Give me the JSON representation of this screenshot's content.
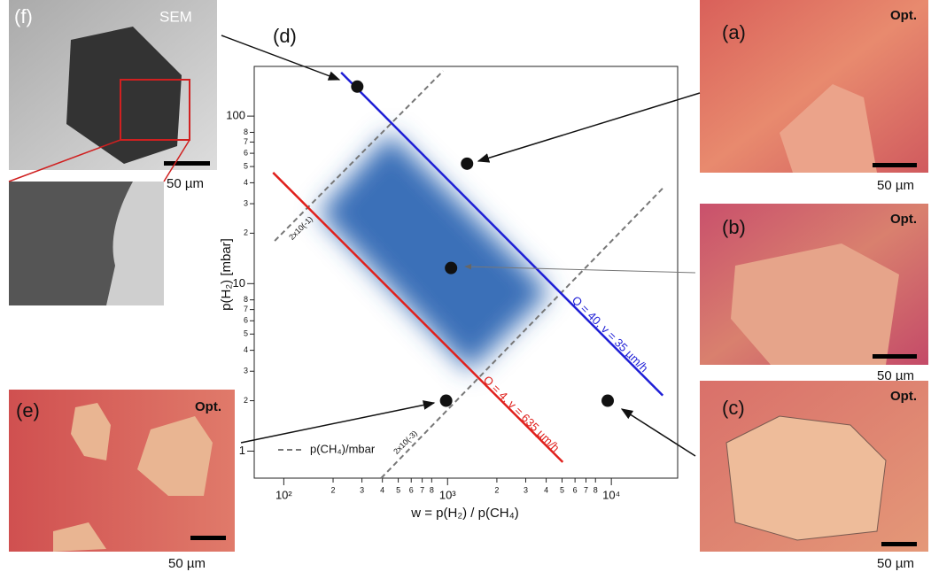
{
  "chart_data": {
    "type": "scatter",
    "panel_label": "(d)",
    "x_label": "w = p(H₂) / p(CH₄)",
    "y_label": "p(H₂) [mbar]",
    "log_x": true,
    "log_y": true,
    "xlim": [
      66,
      25400
    ],
    "ylim": [
      0.69,
      198
    ],
    "xticks": [
      {
        "value": 100,
        "label": "10²"
      },
      {
        "value": 200,
        "label": "2"
      },
      {
        "value": 300,
        "label": "3"
      },
      {
        "value": 400,
        "label": "4"
      },
      {
        "value": 500,
        "label": "5"
      },
      {
        "value": 600,
        "label": "6"
      },
      {
        "value": 700,
        "label": "7"
      },
      {
        "value": 800,
        "label": "8"
      },
      {
        "value": 1000,
        "label": "10³"
      },
      {
        "value": 2000,
        "label": "2"
      },
      {
        "value": 3000,
        "label": "3"
      },
      {
        "value": 4000,
        "label": "4"
      },
      {
        "value": 5000,
        "label": "5"
      },
      {
        "value": 6000,
        "label": "6"
      },
      {
        "value": 7000,
        "label": "7"
      },
      {
        "value": 8000,
        "label": "8"
      },
      {
        "value": 10000,
        "label": "10⁴"
      }
    ],
    "yticks": [
      1,
      2,
      3,
      4,
      5,
      6,
      7,
      8,
      10,
      {
        "value": 20,
        "label": "2"
      },
      {
        "value": 30,
        "label": "3"
      },
      {
        "value": 40,
        "label": "4"
      },
      {
        "value": 50,
        "label": "5"
      },
      {
        "value": 60,
        "label": "6"
      },
      {
        "value": 70,
        "label": "7"
      },
      {
        "value": 80,
        "label": "8"
      },
      100
    ],
    "points": {
      "color": "#111111",
      "x": [
        281,
        1315,
        1050,
        980,
        9500
      ],
      "y": [
        150,
        52,
        12.4,
        2.0,
        2.0
      ]
    },
    "lines": [
      {
        "label": "Q = 40, v = 35 µm/h",
        "color": "#1f1fd6",
        "x": [
          224,
          20600
        ],
        "y": [
          182,
          2.15
        ]
      },
      {
        "label": "Q = 4, v = 635 µm/h",
        "color": "#e0201c",
        "x": [
          86,
          5050
        ],
        "y": [
          46,
          0.86
        ]
      }
    ],
    "guides": [
      {
        "label": "2x10(-1)",
        "color": "#777777",
        "x": [
          88,
          940
        ],
        "y": [
          18,
          186
        ]
      },
      {
        "label": "2x10(-3)",
        "color": "#777777",
        "x": [
          393,
          21100
        ],
        "y": [
          0.69,
          38
        ]
      }
    ],
    "guide_legend": "p(CH₄)/mbar",
    "region": {
      "color": "#3a6fb8",
      "x": [
        164,
        446,
        4190,
        1365
      ],
      "y": [
        26.5,
        79,
        8.9,
        3.0
      ]
    }
  },
  "panels": {
    "f": {
      "label": "(f)",
      "tag": "SEM",
      "scale": "50 µm"
    },
    "e": {
      "label": "(e)",
      "tag": "Opt.",
      "scale": "50 µm"
    },
    "a": {
      "label": "(a)",
      "tag": "Opt.",
      "scale": "50 µm"
    },
    "b": {
      "label": "(b)",
      "tag": "Opt.",
      "scale": "50 µm"
    },
    "c": {
      "label": "(c)",
      "tag": "Opt.",
      "scale": "50 µm"
    }
  }
}
